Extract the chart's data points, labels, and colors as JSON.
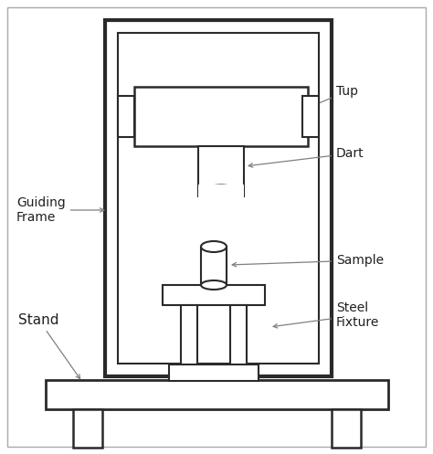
{
  "bg_color": "#ffffff",
  "line_color": "#2a2a2a",
  "fill_white": "#ffffff",
  "labels": {
    "tup": "Tup",
    "dart": "Dart",
    "guiding_frame": "Guiding\nFrame",
    "stand": "Stand",
    "sample": "Sample",
    "steel_fixture": "Steel\nFixture"
  },
  "outer_border_color": "#cccccc"
}
